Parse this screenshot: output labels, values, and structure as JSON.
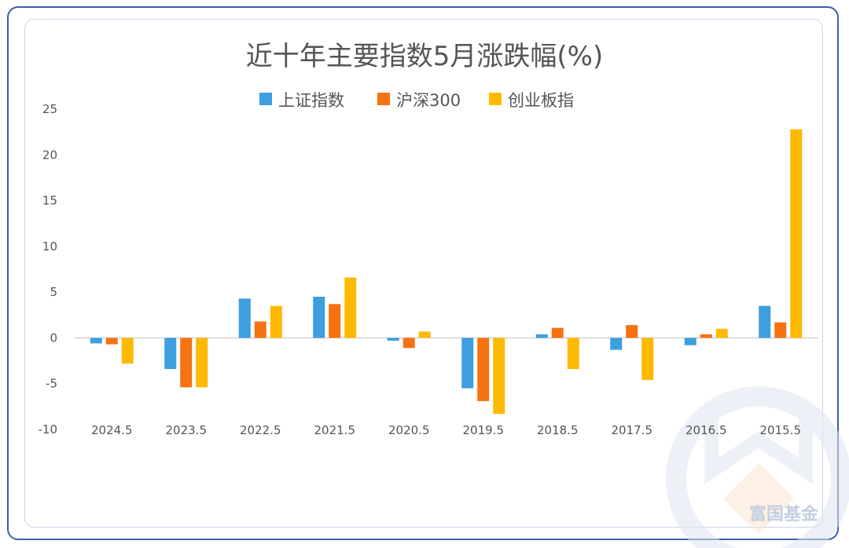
{
  "watermark_text": "富国基金",
  "chart_data": {
    "type": "bar",
    "title": "近十年主要指数5月涨跌幅(%)",
    "xlabel": "",
    "ylabel": "",
    "categories": [
      "2024.5",
      "2023.5",
      "2022.5",
      "2021.5",
      "2020.5",
      "2019.5",
      "2018.5",
      "2017.5",
      "2016.5",
      "2015.5"
    ],
    "series": [
      {
        "name": "上证指数",
        "color": "#3d9ee0",
        "values": [
          -0.6,
          -3.4,
          4.3,
          4.5,
          -0.3,
          -5.5,
          0.4,
          -1.3,
          -0.8,
          3.5
        ]
      },
      {
        "name": "沪深300",
        "color": "#f57212",
        "values": [
          -0.7,
          -5.4,
          1.8,
          3.7,
          -1.1,
          -6.9,
          1.1,
          1.4,
          0.4,
          1.7
        ]
      },
      {
        "name": "创业板指",
        "color": "#ffb900",
        "values": [
          -2.8,
          -5.4,
          3.5,
          6.6,
          0.7,
          -8.3,
          -3.4,
          -4.6,
          1.0,
          22.8
        ]
      }
    ],
    "yticks": [
      25,
      20,
      15,
      10,
      5,
      0,
      -5,
      -10
    ],
    "ylim": [
      -10,
      25
    ],
    "legend_position": "top-center",
    "grid": false
  }
}
